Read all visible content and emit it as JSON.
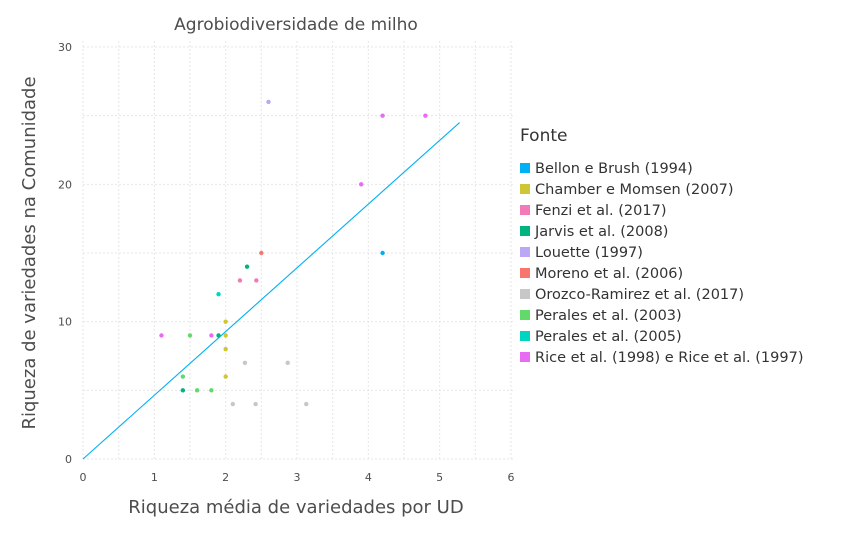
{
  "chart_data": {
    "type": "scatter",
    "title": "Agrobiodiversidade de milho",
    "xlabel": "Riqueza média de variedades por UD",
    "ylabel": "Riqueza de variedades na Comunidade",
    "xlim": [
      0,
      6
    ],
    "ylim": [
      0,
      30
    ],
    "x_ticks": [
      0,
      1,
      2,
      3,
      4,
      5,
      6
    ],
    "y_ticks": [
      0,
      10,
      20,
      30
    ],
    "grid": true,
    "legend_title": "Fonte",
    "legend_position": "right",
    "series": [
      {
        "name": "Bellon e Brush (1994)",
        "color": "#00b0f6",
        "points": [
          [
            4.2,
            15
          ]
        ]
      },
      {
        "name": "Chamber e Momsen (2007)",
        "color": "#cfc636",
        "points": [
          [
            2.0,
            10
          ],
          [
            2.0,
            9
          ],
          [
            2.0,
            8
          ],
          [
            2.0,
            6
          ]
        ]
      },
      {
        "name": "Fenzi et al. (2017)",
        "color": "#f07bb6",
        "points": [
          [
            2.2,
            13
          ],
          [
            2.43,
            13
          ]
        ]
      },
      {
        "name": "Jarvis et al. (2008)",
        "color": "#00b37f",
        "points": [
          [
            2.3,
            14
          ],
          [
            1.9,
            9
          ],
          [
            1.4,
            5
          ]
        ]
      },
      {
        "name": "Louette (1997)",
        "color": "#bca7f5",
        "points": [
          [
            2.6,
            26
          ]
        ]
      },
      {
        "name": "Moreno et al. (2006)",
        "color": "#f8766d",
        "points": [
          [
            2.5,
            15
          ]
        ]
      },
      {
        "name": "Orozco-Ramirez et al. (2017)",
        "color": "#c7c7c7",
        "points": [
          [
            2.27,
            7
          ],
          [
            2.87,
            7
          ],
          [
            2.1,
            4
          ],
          [
            2.42,
            4
          ],
          [
            3.13,
            4
          ]
        ]
      },
      {
        "name": "Perales et al. (2003)",
        "color": "#62d96b",
        "points": [
          [
            1.5,
            9
          ],
          [
            1.4,
            6
          ],
          [
            1.6,
            5
          ],
          [
            1.8,
            5
          ]
        ]
      },
      {
        "name": "Perales et al. (2005)",
        "color": "#00d4c2",
        "points": [
          [
            1.9,
            12
          ]
        ]
      },
      {
        "name": "Rice et al. (1998) e Rice et al. (1997)",
        "color": "#e76bf3",
        "points": [
          [
            1.1,
            9
          ],
          [
            1.8,
            9
          ],
          [
            3.9,
            20
          ],
          [
            4.2,
            25
          ],
          [
            4.8,
            25
          ]
        ]
      }
    ],
    "trend_line": {
      "color": "#00b0f6",
      "points": [
        [
          0,
          0
        ],
        [
          5.28,
          24.5
        ]
      ]
    }
  }
}
